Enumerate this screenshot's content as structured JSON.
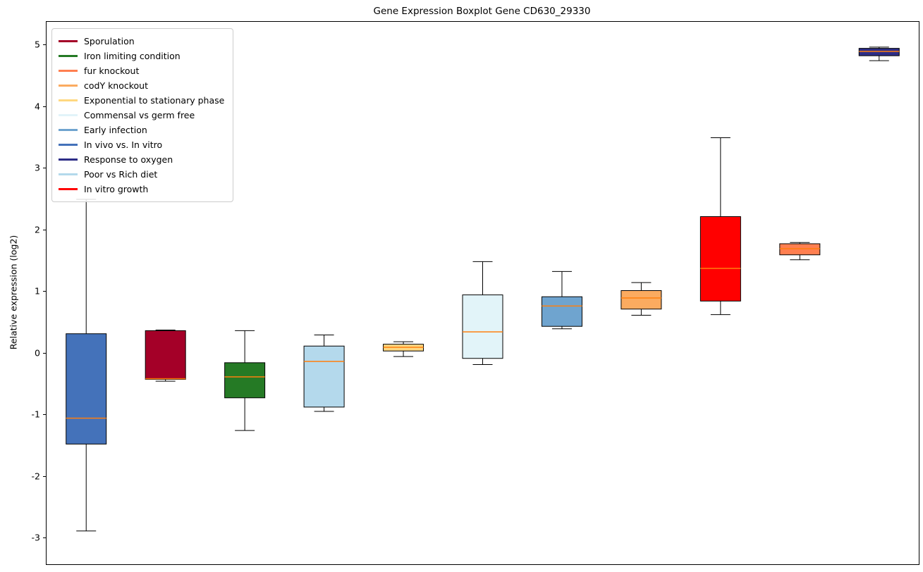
{
  "chart_data": {
    "type": "boxplot",
    "title": "Gene Expression Boxplot Gene CD630_29330",
    "ylabel": "Relative expression (log2)",
    "xlabel": "",
    "ylim": [
      -3.42,
      5.38
    ],
    "yticks": [
      -3,
      -2,
      -1,
      0,
      1,
      2,
      3,
      4,
      5
    ],
    "grid": false,
    "legend_position": "upper-left",
    "median_color": "#ff7f0e",
    "box_edge_color": "#000000",
    "legend_order": [
      "Sporulation",
      "Iron limiting condition",
      "fur knockout",
      "codY knockout",
      "Exponential to stationary phase",
      "Commensal vs germ free",
      "Early infection",
      "In vivo vs. In vitro",
      "Response to oxygen",
      "Poor vs Rich diet",
      "In vitro growth"
    ],
    "series": [
      {
        "name": "In vivo vs. In vitro",
        "color": "#4472ba",
        "whislo": -2.88,
        "q1": -1.47,
        "med": -1.05,
        "q3": 0.32,
        "whishi": 2.5
      },
      {
        "name": "Sporulation",
        "color": "#a40028",
        "whislo": -0.45,
        "q1": -0.42,
        "med": -0.41,
        "q3": 0.37,
        "whishi": 0.38
      },
      {
        "name": "Iron limiting condition",
        "color": "#257a25",
        "whislo": -1.25,
        "q1": -0.72,
        "med": -0.38,
        "q3": -0.15,
        "whishi": 0.37
      },
      {
        "name": "Poor vs Rich diet",
        "color": "#b4d9ec",
        "whislo": -0.94,
        "q1": -0.87,
        "med": -0.13,
        "q3": 0.12,
        "whishi": 0.3
      },
      {
        "name": "Exponential to stationary phase",
        "color": "#ffd880",
        "whislo": -0.05,
        "q1": 0.04,
        "med": 0.1,
        "q3": 0.15,
        "whishi": 0.19
      },
      {
        "name": "Commensal vs germ free",
        "color": "#e2f4f9",
        "whislo": -0.18,
        "q1": -0.08,
        "med": 0.35,
        "q3": 0.95,
        "whishi": 1.49
      },
      {
        "name": "Early infection",
        "color": "#6fa4cf",
        "whislo": 0.4,
        "q1": 0.44,
        "med": 0.77,
        "q3": 0.92,
        "whishi": 1.33
      },
      {
        "name": "codY knockout",
        "color": "#fbab60",
        "whislo": 0.62,
        "q1": 0.72,
        "med": 0.9,
        "q3": 1.02,
        "whishi": 1.15
      },
      {
        "name": "In vitro growth",
        "color": "#ff0000",
        "whislo": 0.63,
        "q1": 0.85,
        "med": 1.38,
        "q3": 2.22,
        "whishi": 3.5
      },
      {
        "name": "fur knockout",
        "color": "#ff7f50",
        "whislo": 1.52,
        "q1": 1.6,
        "med": 1.7,
        "q3": 1.78,
        "whishi": 1.8
      },
      {
        "name": "Response to oxygen",
        "color": "#2d2d87",
        "whislo": 4.75,
        "q1": 4.83,
        "med": 4.9,
        "q3": 4.95,
        "whishi": 4.97
      }
    ]
  }
}
